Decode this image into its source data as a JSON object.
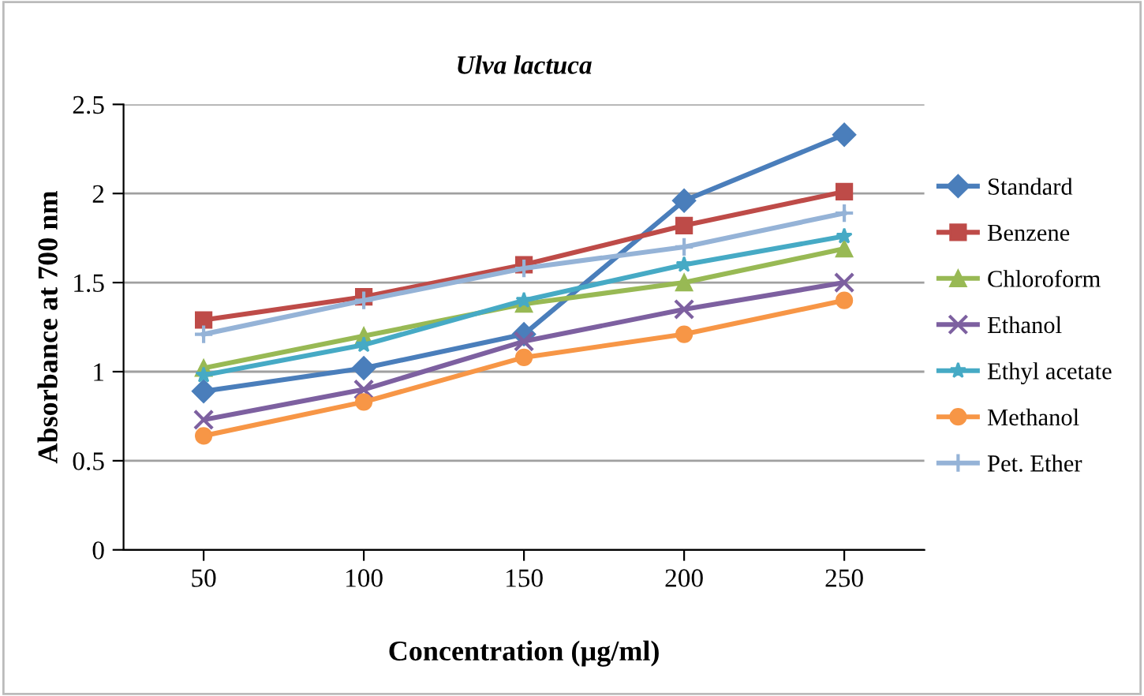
{
  "chart_data": {
    "type": "line",
    "title": "Ulva lactuca",
    "xlabel": "Concentration (µg/ml)",
    "ylabel": "Absorbance at 700 nm",
    "categories": [
      "50",
      "100",
      "150",
      "200",
      "250"
    ],
    "series": [
      {
        "name": "Standard",
        "color": "#4a7ebb",
        "marker": "diamond",
        "values": [
          0.89,
          1.02,
          1.21,
          1.96,
          2.33
        ]
      },
      {
        "name": "Benzene",
        "color": "#be4b48",
        "marker": "square",
        "values": [
          1.29,
          1.42,
          1.6,
          1.82,
          2.01
        ]
      },
      {
        "name": "Chloroform",
        "color": "#98b954",
        "marker": "triangle",
        "values": [
          1.02,
          1.2,
          1.38,
          1.5,
          1.69
        ]
      },
      {
        "name": "Ethanol",
        "color": "#7d60a0",
        "marker": "x",
        "values": [
          0.73,
          0.9,
          1.17,
          1.35,
          1.5
        ]
      },
      {
        "name": "Ethyl acetate",
        "color": "#46aac5",
        "marker": "star",
        "values": [
          0.98,
          1.15,
          1.4,
          1.6,
          1.76
        ]
      },
      {
        "name": "Methanol",
        "color": "#f79646",
        "marker": "circle",
        "values": [
          0.64,
          0.83,
          1.08,
          1.21,
          1.4
        ]
      },
      {
        "name": "Pet. Ether",
        "color": "#95b3d7",
        "marker": "cross",
        "values": [
          1.21,
          1.4,
          1.58,
          1.7,
          1.89
        ]
      }
    ],
    "ylim": [
      0,
      2.5
    ],
    "yticks": [
      0,
      0.5,
      1,
      1.5,
      2,
      2.5
    ],
    "grid": "y",
    "legend": "right",
    "line_style": "solid"
  }
}
